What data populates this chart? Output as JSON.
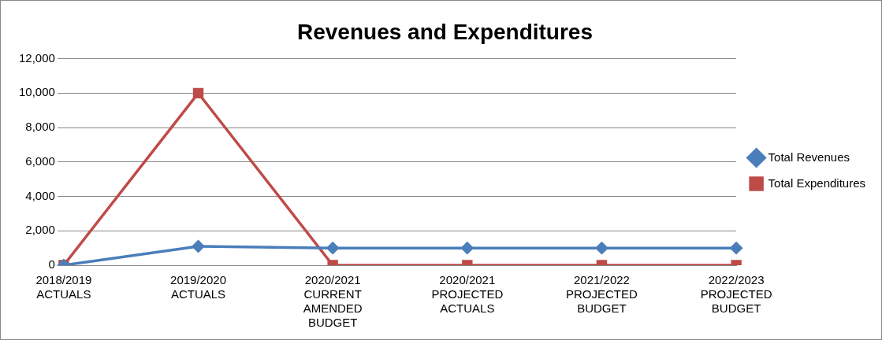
{
  "chart_data": {
    "type": "line",
    "title": "Revenues and Expenditures",
    "categories": [
      "2018/2019 ACTUALS",
      "2019/2020 ACTUALS",
      "2020/2021 CURRENT AMENDED BUDGET",
      "2020/2021 PROJECTED ACTUALS",
      "2021/2022 PROJECTED BUDGET",
      "2022/2023 PROJECTED BUDGET"
    ],
    "series": [
      {
        "name": "Total Revenues",
        "color": "#4a7ebb",
        "marker": "diamond",
        "values": [
          0,
          1100,
          1000,
          1000,
          1000,
          1000
        ]
      },
      {
        "name": "Total Expenditures",
        "color": "#be4b48",
        "marker": "square",
        "values": [
          0,
          10000,
          0,
          0,
          0,
          0
        ]
      }
    ],
    "ylim": [
      0,
      12000
    ],
    "yticks": [
      0,
      {
        "value": 2000,
        "label": "2,000"
      },
      {
        "value": 4000,
        "label": "4,000"
      },
      {
        "value": 6000,
        "label": "6,000"
      },
      {
        "value": 8000,
        "label": "8,000"
      },
      {
        "value": 10000,
        "label": "10,000"
      },
      {
        "value": 12000,
        "label": "12,000"
      }
    ],
    "grid": "y",
    "legend": "right"
  }
}
